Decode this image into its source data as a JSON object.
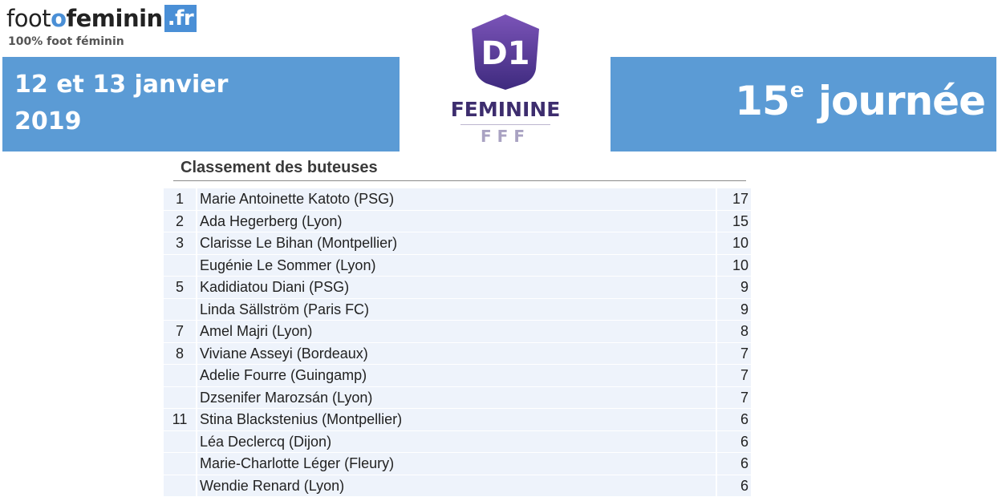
{
  "logo": {
    "name_part1": "foot",
    "name_o": "o",
    "name_part2": "feminin",
    "domain": ".fr",
    "tagline": "100% foot féminin"
  },
  "banner": {
    "date_line1": "12 et 13 janvier",
    "date_line2": "2019",
    "round_number": "15",
    "round_superscript": "e",
    "round_word": "journée"
  },
  "league_logo": {
    "mark": "D1",
    "label": "FEMININE",
    "federation": "FFF"
  },
  "table": {
    "title": "Classement des buteuses",
    "rows": [
      {
        "rank": "1",
        "player": "Marie Antoinette Katoto (PSG)",
        "goals": "17"
      },
      {
        "rank": "2",
        "player": "Ada Hegerberg (Lyon)",
        "goals": "15"
      },
      {
        "rank": "3",
        "player": "Clarisse Le Bihan (Montpellier)",
        "goals": "10"
      },
      {
        "rank": "",
        "player": "Eugénie Le Sommer (Lyon)",
        "goals": "10"
      },
      {
        "rank": "5",
        "player": "Kadidiatou Diani (PSG)",
        "goals": "9"
      },
      {
        "rank": "",
        "player": "Linda Sällström (Paris FC)",
        "goals": "9"
      },
      {
        "rank": "7",
        "player": "Amel Majri (Lyon)",
        "goals": "8"
      },
      {
        "rank": "8",
        "player": "Viviane Asseyi (Bordeaux)",
        "goals": "7"
      },
      {
        "rank": "",
        "player": "Adelie Fourre (Guingamp)",
        "goals": "7"
      },
      {
        "rank": "",
        "player": "Dzsenifer Marozsán (Lyon)",
        "goals": "7"
      },
      {
        "rank": "11",
        "player": "Stina Blackstenius (Montpellier)",
        "goals": "6"
      },
      {
        "rank": "",
        "player": "Léa Declercq (Dijon)",
        "goals": "6"
      },
      {
        "rank": "",
        "player": "Marie-Charlotte Léger (Fleury)",
        "goals": "6"
      },
      {
        "rank": "",
        "player": "Wendie Renard (Lyon)",
        "goals": "6"
      }
    ]
  }
}
